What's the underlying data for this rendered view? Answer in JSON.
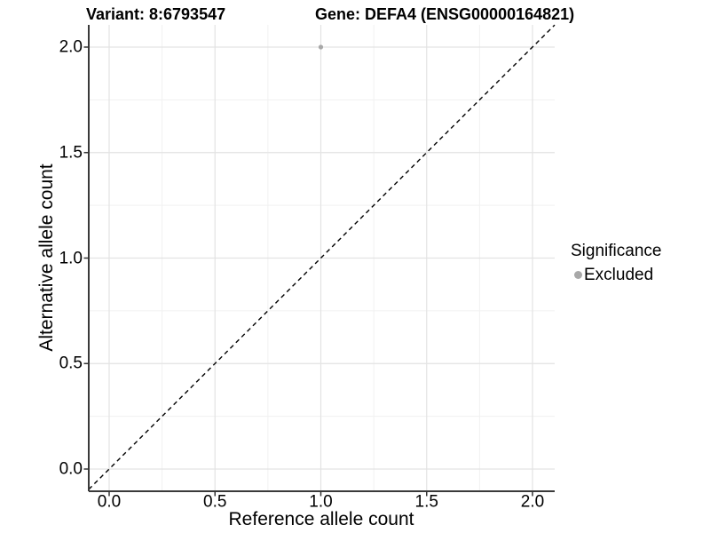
{
  "chart_data": {
    "type": "scatter",
    "title_left": "Variant: 8:6793547",
    "title_right": "Gene: DEFA4 (ENSG00000164821)",
    "xlabel": "Reference allele count",
    "ylabel": "Alternative allele count",
    "xlim": [
      -0.1,
      2.1
    ],
    "ylim": [
      -0.1,
      2.1
    ],
    "x_ticks": [
      0.0,
      0.5,
      1.0,
      1.5,
      2.0
    ],
    "y_ticks": [
      0.0,
      0.5,
      1.0,
      1.5,
      2.0
    ],
    "x_tick_labels": [
      "0.0",
      "0.5",
      "1.0",
      "1.5",
      "2.0"
    ],
    "y_tick_labels": [
      "0.0",
      "0.5",
      "1.0",
      "1.5",
      "2.0"
    ],
    "x_minor_ticks": [
      0.25,
      0.75,
      1.25,
      1.75
    ],
    "y_minor_ticks": [
      0.25,
      0.75,
      1.25,
      1.75
    ],
    "grid": "major+minor",
    "points": [
      {
        "x": 1.0,
        "y": 2.0,
        "significance": "Excluded"
      }
    ],
    "identity_line": {
      "note": "y = x",
      "style": "dashed"
    },
    "legend": {
      "title": "Significance",
      "position": "right",
      "entries": [
        {
          "label": "Excluded",
          "color": "#a8a8a8"
        }
      ]
    },
    "colors": {
      "point": "#a8a8a8",
      "grid_major": "#e3e3e3",
      "grid_minor": "#f1f1f1",
      "axis_line": "#3a3a3a",
      "tick_mark": "#333333",
      "dashed_line": "#000000",
      "text": "#000000"
    }
  }
}
